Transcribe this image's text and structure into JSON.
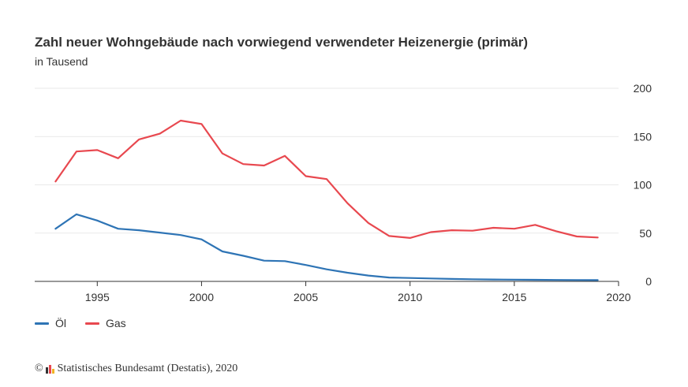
{
  "chart_data": {
    "type": "line",
    "title": "Zahl neuer Wohngebäude nach vorwiegend verwendeter Heizenergie (primär)",
    "subtitle": "in Tausend",
    "xlim": [
      1992,
      2020
    ],
    "ylim": [
      0,
      200
    ],
    "x_ticks": [
      1995,
      2000,
      2005,
      2010,
      2015,
      2020
    ],
    "y_ticks": [
      0,
      50,
      100,
      150,
      200
    ],
    "grid": true,
    "y_axis_side": "right",
    "legend_position": "bottom-left",
    "x": [
      1993,
      1994,
      1995,
      1996,
      1997,
      1998,
      1999,
      2000,
      2001,
      2002,
      2003,
      2004,
      2005,
      2006,
      2007,
      2008,
      2009,
      2010,
      2011,
      2012,
      2013,
      2014,
      2015,
      2016,
      2017,
      2018,
      2019
    ],
    "series": [
      {
        "name": "Öl",
        "color": "#2e74b5",
        "values": [
          54.5,
          69.5,
          63,
          54.5,
          53,
          50.5,
          48,
          43.5,
          31,
          26.5,
          21.5,
          21,
          17,
          12.5,
          9,
          6,
          4,
          3.5,
          3,
          2.5,
          2.2,
          2,
          1.8,
          1.6,
          1.5,
          1.4,
          1.3
        ]
      },
      {
        "name": "Gas",
        "color": "#e8484f",
        "values": [
          103.5,
          134.5,
          136,
          127.5,
          147,
          153,
          166.5,
          163,
          132.5,
          121.5,
          120,
          130,
          109,
          106,
          81,
          60.5,
          47,
          45,
          51,
          53,
          52.5,
          55.5,
          54.5,
          58.5,
          52,
          46.5,
          45.5
        ]
      }
    ]
  },
  "credit": {
    "symbol": "©",
    "text": "Statistisches Bundesamt (Destatis), 2020",
    "logo_colors": [
      "#333333",
      "#e8484f",
      "#f0b323"
    ]
  }
}
